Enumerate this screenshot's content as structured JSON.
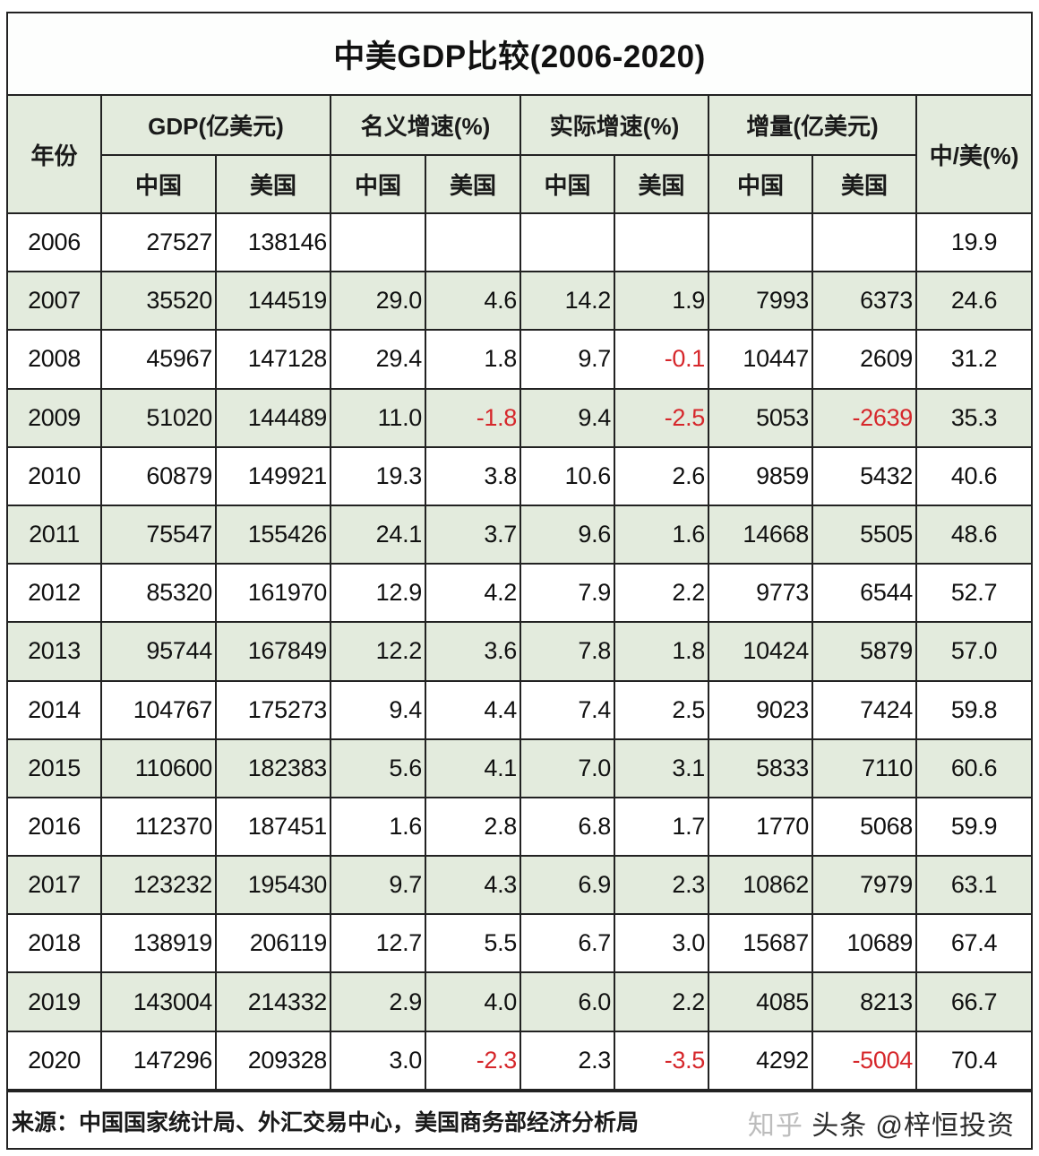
{
  "title": "中美GDP比较(2006-2020)",
  "header": {
    "year": "年份",
    "groups": [
      {
        "label": "GDP(亿美元)",
        "sub": [
          "中国",
          "美国"
        ]
      },
      {
        "label": "名义增速(%)",
        "sub": [
          "中国",
          "美国"
        ]
      },
      {
        "label": "实际增速(%)",
        "sub": [
          "中国",
          "美国"
        ]
      },
      {
        "label": "增量(亿美元)",
        "sub": [
          "中国",
          "美国"
        ]
      }
    ],
    "ratio": "中/美(%)"
  },
  "colors": {
    "shade": "#e3ebdd",
    "negative": "#d6272b",
    "border": "#222222"
  },
  "rows": [
    {
      "year": "2006",
      "gdp_cn": "27527",
      "gdp_us": "138146",
      "nom_cn": "",
      "nom_us": "",
      "real_cn": "",
      "real_us": "",
      "inc_cn": "",
      "inc_us": "",
      "ratio": "19.9"
    },
    {
      "year": "2007",
      "gdp_cn": "35520",
      "gdp_us": "144519",
      "nom_cn": "29.0",
      "nom_us": "4.6",
      "real_cn": "14.2",
      "real_us": "1.9",
      "inc_cn": "7993",
      "inc_us": "6373",
      "ratio": "24.6"
    },
    {
      "year": "2008",
      "gdp_cn": "45967",
      "gdp_us": "147128",
      "nom_cn": "29.4",
      "nom_us": "1.8",
      "real_cn": "9.7",
      "real_us": "-0.1",
      "inc_cn": "10447",
      "inc_us": "2609",
      "ratio": "31.2"
    },
    {
      "year": "2009",
      "gdp_cn": "51020",
      "gdp_us": "144489",
      "nom_cn": "11.0",
      "nom_us": "-1.8",
      "real_cn": "9.4",
      "real_us": "-2.5",
      "inc_cn": "5053",
      "inc_us": "-2639",
      "ratio": "35.3"
    },
    {
      "year": "2010",
      "gdp_cn": "60879",
      "gdp_us": "149921",
      "nom_cn": "19.3",
      "nom_us": "3.8",
      "real_cn": "10.6",
      "real_us": "2.6",
      "inc_cn": "9859",
      "inc_us": "5432",
      "ratio": "40.6"
    },
    {
      "year": "2011",
      "gdp_cn": "75547",
      "gdp_us": "155426",
      "nom_cn": "24.1",
      "nom_us": "3.7",
      "real_cn": "9.6",
      "real_us": "1.6",
      "inc_cn": "14668",
      "inc_us": "5505",
      "ratio": "48.6"
    },
    {
      "year": "2012",
      "gdp_cn": "85320",
      "gdp_us": "161970",
      "nom_cn": "12.9",
      "nom_us": "4.2",
      "real_cn": "7.9",
      "real_us": "2.2",
      "inc_cn": "9773",
      "inc_us": "6544",
      "ratio": "52.7"
    },
    {
      "year": "2013",
      "gdp_cn": "95744",
      "gdp_us": "167849",
      "nom_cn": "12.2",
      "nom_us": "3.6",
      "real_cn": "7.8",
      "real_us": "1.8",
      "inc_cn": "10424",
      "inc_us": "5879",
      "ratio": "57.0"
    },
    {
      "year": "2014",
      "gdp_cn": "104767",
      "gdp_us": "175273",
      "nom_cn": "9.4",
      "nom_us": "4.4",
      "real_cn": "7.4",
      "real_us": "2.5",
      "inc_cn": "9023",
      "inc_us": "7424",
      "ratio": "59.8"
    },
    {
      "year": "2015",
      "gdp_cn": "110600",
      "gdp_us": "182383",
      "nom_cn": "5.6",
      "nom_us": "4.1",
      "real_cn": "7.0",
      "real_us": "3.1",
      "inc_cn": "5833",
      "inc_us": "7110",
      "ratio": "60.6"
    },
    {
      "year": "2016",
      "gdp_cn": "112370",
      "gdp_us": "187451",
      "nom_cn": "1.6",
      "nom_us": "2.8",
      "real_cn": "6.8",
      "real_us": "1.7",
      "inc_cn": "1770",
      "inc_us": "5068",
      "ratio": "59.9"
    },
    {
      "year": "2017",
      "gdp_cn": "123232",
      "gdp_us": "195430",
      "nom_cn": "9.7",
      "nom_us": "4.3",
      "real_cn": "6.9",
      "real_us": "2.3",
      "inc_cn": "10862",
      "inc_us": "7979",
      "ratio": "63.1"
    },
    {
      "year": "2018",
      "gdp_cn": "138919",
      "gdp_us": "206119",
      "nom_cn": "12.7",
      "nom_us": "5.5",
      "real_cn": "6.7",
      "real_us": "3.0",
      "inc_cn": "15687",
      "inc_us": "10689",
      "ratio": "67.4"
    },
    {
      "year": "2019",
      "gdp_cn": "143004",
      "gdp_us": "214332",
      "nom_cn": "2.9",
      "nom_us": "4.0",
      "real_cn": "6.0",
      "real_us": "2.2",
      "inc_cn": "4085",
      "inc_us": "8213",
      "ratio": "66.7"
    },
    {
      "year": "2020",
      "gdp_cn": "147296",
      "gdp_us": "209328",
      "nom_cn": "3.0",
      "nom_us": "-2.3",
      "real_cn": "2.3",
      "real_us": "-3.5",
      "inc_cn": "4292",
      "inc_us": "-5004",
      "ratio": "70.4"
    }
  ],
  "footer": {
    "source": "来源：中国国家统计局、外汇交易中心，美国商务部经济分析局",
    "watermark_ghost": "知乎",
    "watermark": "头条 @梓恒投资"
  }
}
